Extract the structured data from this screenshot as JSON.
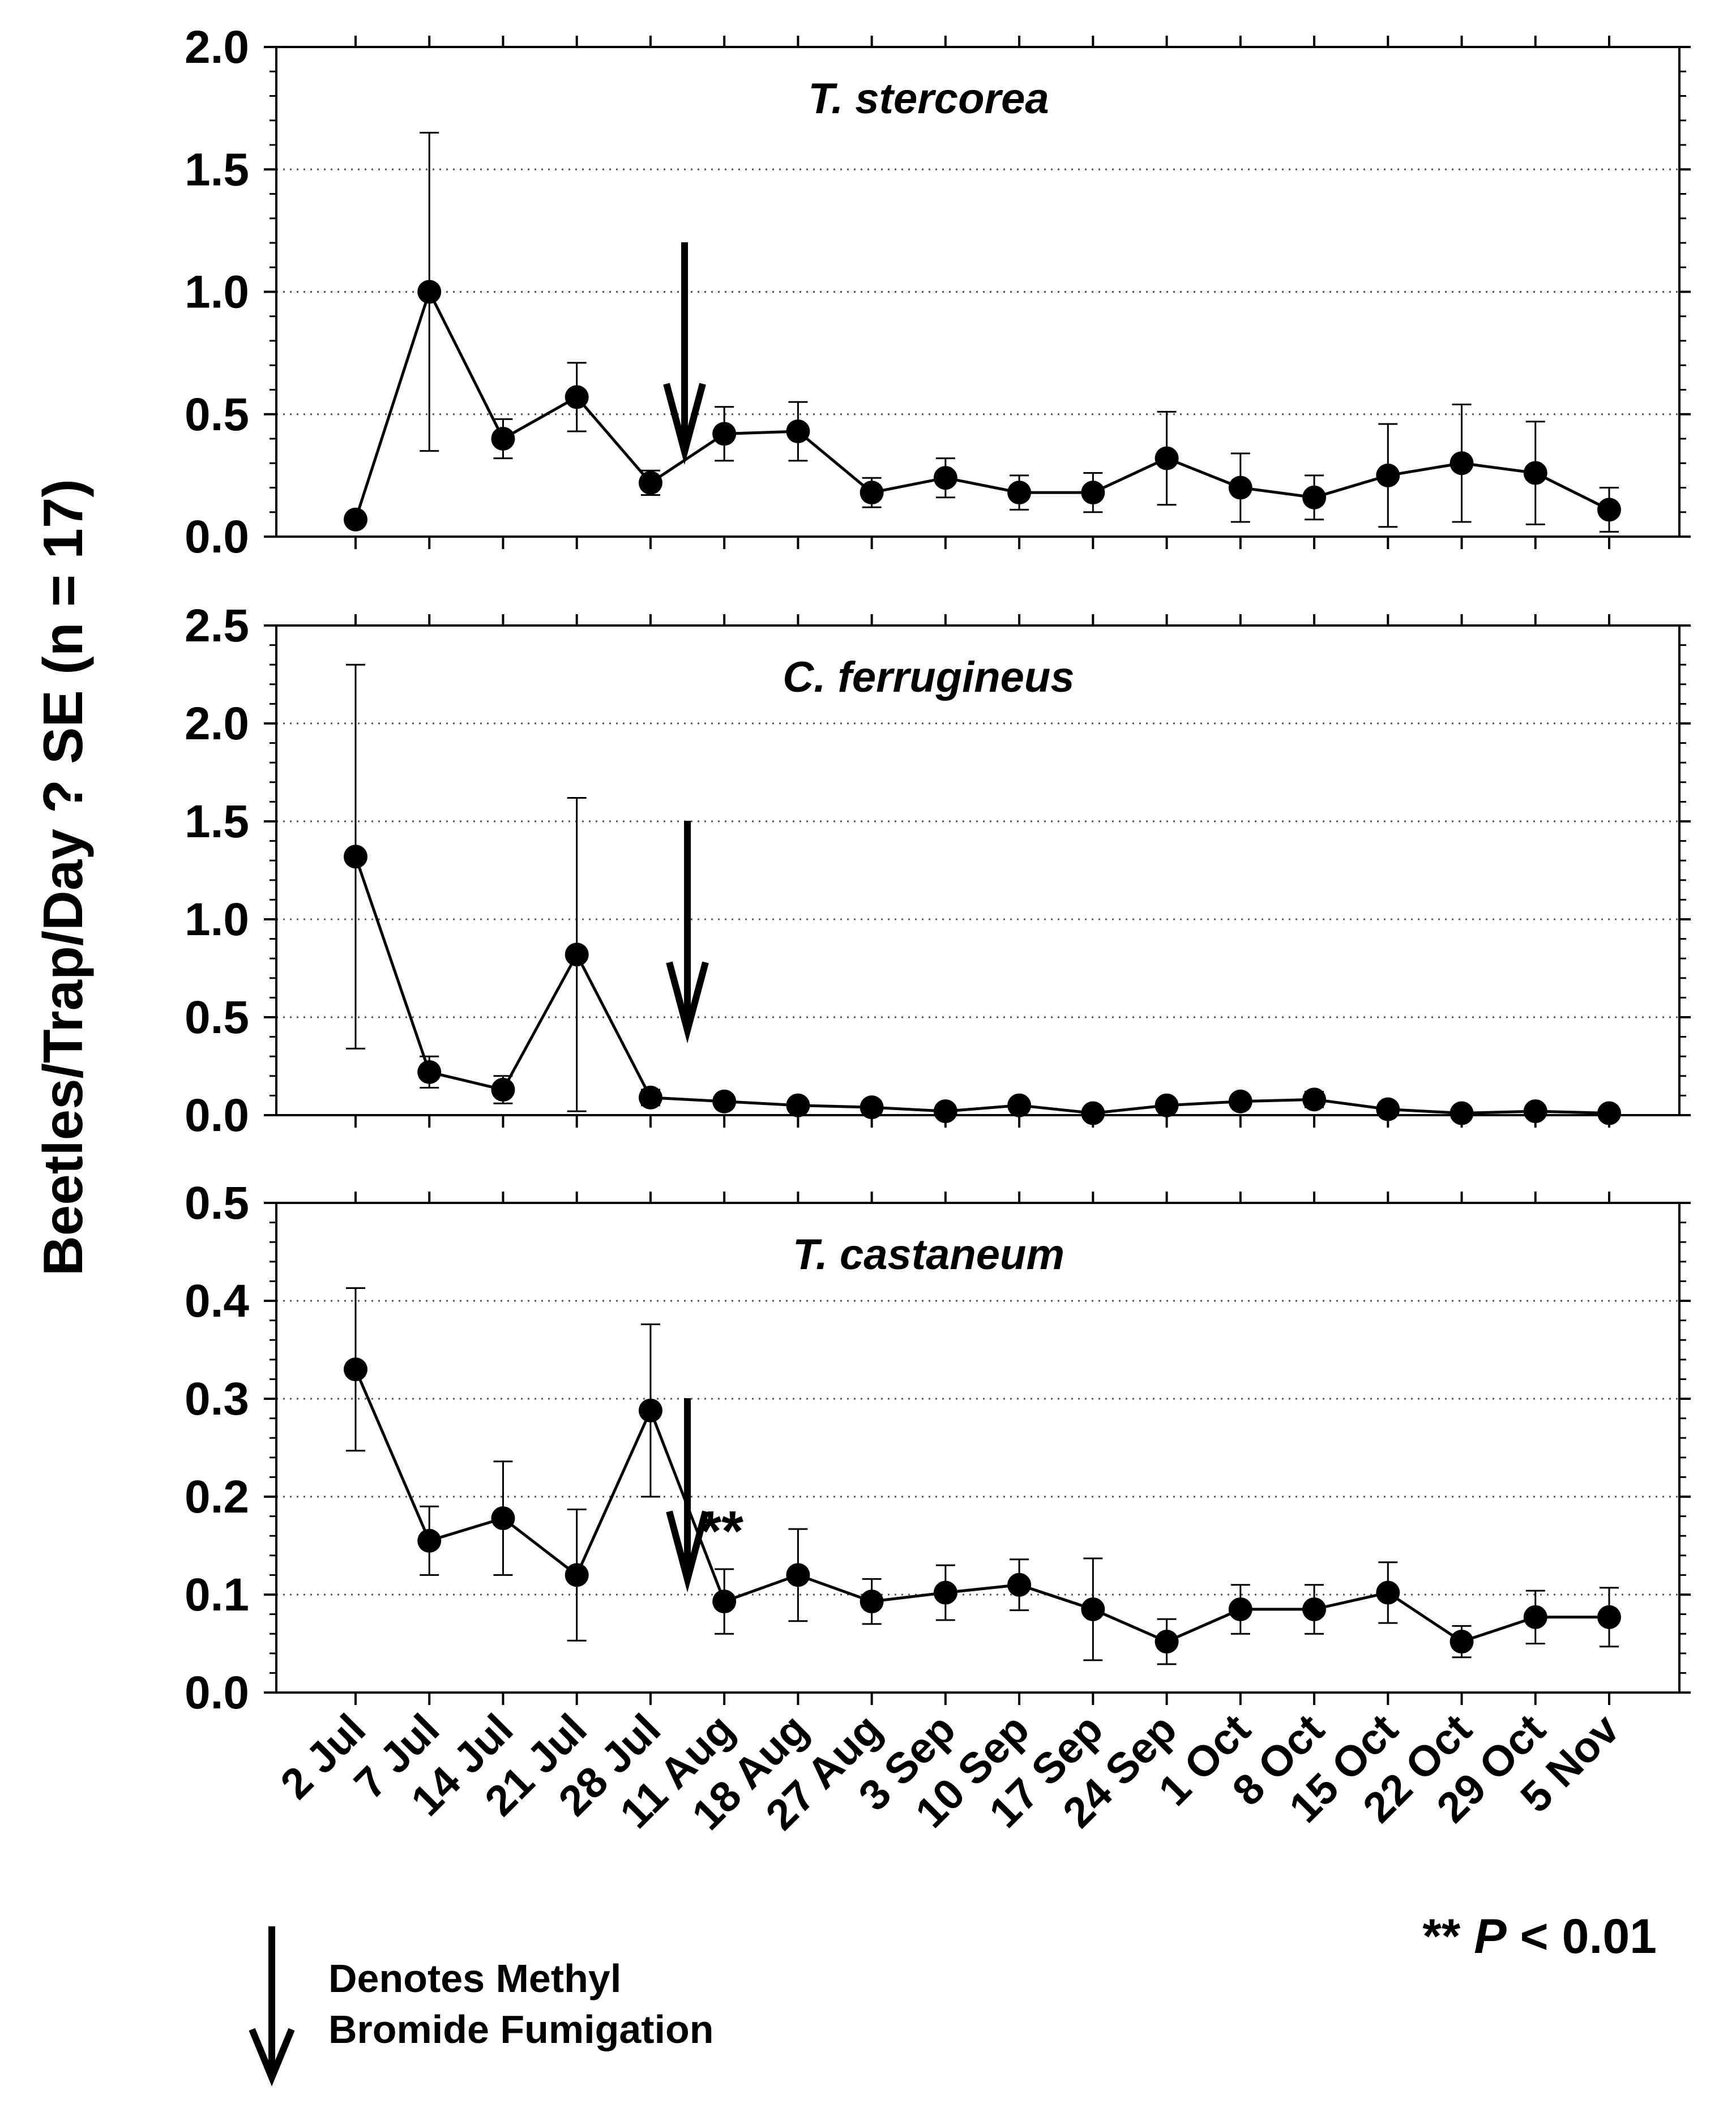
{
  "chart_data": {
    "type": "line",
    "y_axis_label": "Beetles/Trap/Day ? SE (n = 17)",
    "categories": [
      "2 Jul",
      "7 Jul",
      "14 Jul",
      "21 Jul",
      "28 Jul",
      "11 Aug",
      "18 Aug",
      "27 Aug",
      "3 Sep",
      "10 Sep",
      "17 Sep",
      "24 Sep",
      "1 Oct",
      "8 Oct",
      "15 Oct",
      "22 Oct",
      "29 Oct",
      "5 Nov"
    ],
    "fumigation_between": [
      "28 Jul",
      "11 Aug"
    ],
    "panels": [
      {
        "title": "T. stercorea",
        "ylim": [
          0,
          2.0
        ],
        "yticks": [
          "0.0",
          "0.5",
          "1.0",
          "1.5",
          "2.0"
        ],
        "values": [
          0.07,
          1.0,
          0.4,
          0.57,
          0.22,
          0.42,
          0.43,
          0.18,
          0.24,
          0.18,
          0.18,
          0.32,
          0.2,
          0.16,
          0.25,
          0.3,
          0.26,
          0.11
        ],
        "se": [
          0.0,
          0.65,
          0.08,
          0.14,
          0.05,
          0.11,
          0.12,
          0.06,
          0.08,
          0.07,
          0.08,
          0.19,
          0.14,
          0.09,
          0.21,
          0.24,
          0.21,
          0.09
        ],
        "annotation": ""
      },
      {
        "title": "C. ferrugineus",
        "ylim": [
          0,
          2.5
        ],
        "yticks": [
          "0.0",
          "0.5",
          "1.0",
          "1.5",
          "2.0",
          "2.5"
        ],
        "values": [
          1.32,
          0.22,
          0.13,
          0.82,
          0.09,
          0.07,
          0.05,
          0.04,
          0.02,
          0.05,
          0.01,
          0.05,
          0.07,
          0.08,
          0.03,
          0.01,
          0.02,
          0.01
        ],
        "se": [
          0.98,
          0.08,
          0.07,
          0.8,
          0.04,
          0.02,
          0.02,
          0.02,
          0.01,
          0.02,
          0.01,
          0.02,
          0.03,
          0.04,
          0.02,
          0.01,
          0.01,
          0.01
        ],
        "annotation": ""
      },
      {
        "title": "T. castaneum",
        "ylim": [
          0,
          0.5
        ],
        "yticks": [
          "0.0",
          "0.1",
          "0.2",
          "0.3",
          "0.4",
          "0.5"
        ],
        "values": [
          0.33,
          0.155,
          0.178,
          0.12,
          0.288,
          0.093,
          0.12,
          0.093,
          0.102,
          0.11,
          0.085,
          0.052,
          0.085,
          0.085,
          0.102,
          0.052,
          0.077,
          0.077
        ],
        "se": [
          0.083,
          0.035,
          0.058,
          0.067,
          0.088,
          0.033,
          0.047,
          0.023,
          0.028,
          0.026,
          0.052,
          0.023,
          0.025,
          0.025,
          0.031,
          0.016,
          0.027,
          0.03
        ],
        "annotation": "**"
      }
    ]
  },
  "legend": {
    "line1": "Denotes Methyl",
    "line2": "Bromide Fumigation"
  },
  "significance_note": {
    "stars": "**",
    "p": "P",
    "rest": "< 0.01"
  }
}
